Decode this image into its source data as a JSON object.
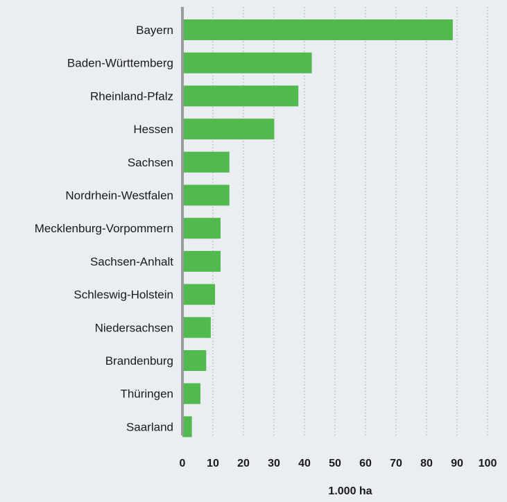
{
  "chart_data": {
    "type": "bar",
    "orientation": "horizontal",
    "categories": [
      "Bayern",
      "Baden-Württemberg",
      "Rheinland-Pfalz",
      "Hessen",
      "Sachsen",
      "Nordrhein-Westfalen",
      "Mecklenburg-Vorpommern",
      "Sachsen-Anhalt",
      "Schleswig-Holstein",
      "Niedersachsen",
      "Brandenburg",
      "Thüringen",
      "Saarland"
    ],
    "values": [
      88.6,
      42.4,
      38.0,
      30.1,
      15.4,
      15.4,
      12.5,
      12.5,
      10.7,
      9.3,
      7.8,
      5.9,
      3.1
    ],
    "xlabel": "1.000 ha",
    "ylabel": "",
    "title": "",
    "xlim": [
      0,
      100
    ],
    "xticks": [
      "0",
      "10",
      "20",
      "30",
      "40",
      "50",
      "60",
      "70",
      "80",
      "90",
      "100"
    ],
    "grid": "vertical dotted",
    "bar_color": "#52b94f",
    "axis_color": "#999999",
    "legend": "none"
  }
}
